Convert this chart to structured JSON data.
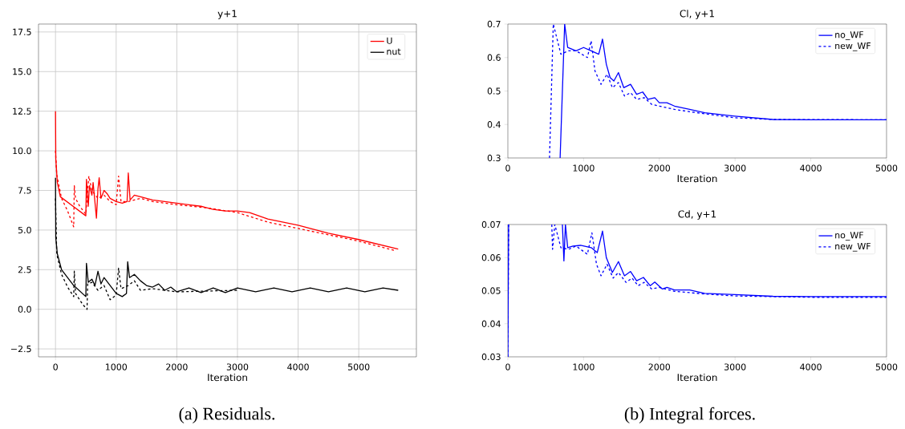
{
  "chart_data": [
    {
      "type": "line",
      "title": "y+1",
      "xlabel": "Iteration",
      "xlim": [
        -280,
        5950
      ],
      "ylim": [
        -3,
        18
      ],
      "xticks": [
        0,
        1000,
        2000,
        3000,
        4000,
        5000
      ],
      "yticks": [
        {
          "value": -2.5,
          "label": "−2.5"
        },
        {
          "value": 0,
          "label": "0.0"
        },
        {
          "value": 2.5,
          "label": "2.5"
        },
        {
          "value": 5,
          "label": "5.0"
        },
        {
          "value": 7.5,
          "label": "7.5"
        },
        {
          "value": 10,
          "label": "10.0"
        },
        {
          "value": 12.5,
          "label": "12.5"
        },
        {
          "value": 15,
          "label": "15.0"
        },
        {
          "value": 17.5,
          "label": "17.5"
        }
      ],
      "grid": true,
      "legend": "top right",
      "marker": "none",
      "annotations": [
        "(a) Residuals."
      ],
      "series": [
        {
          "name": "U",
          "color": "#ff0000",
          "line_style": "solid",
          "x": [
            0,
            5,
            30,
            80,
            500,
            510,
            540,
            560,
            600,
            620,
            675,
            700,
            720,
            750,
            800,
            850,
            900,
            1000,
            1100,
            1180,
            1200,
            1230,
            1300,
            1400,
            1600,
            1800,
            2000,
            2200,
            2400,
            2600,
            2800,
            3000,
            3200,
            3500,
            4000,
            4500,
            5000,
            5650
          ],
          "values": [
            12.5,
            9.5,
            8.0,
            7.1,
            5.9,
            8.2,
            6.5,
            7.8,
            7.2,
            8.0,
            5.75,
            7.6,
            8.3,
            7.0,
            7.5,
            7.3,
            7.0,
            6.8,
            6.7,
            6.8,
            8.6,
            6.9,
            7.2,
            7.1,
            6.9,
            6.8,
            6.7,
            6.6,
            6.5,
            6.3,
            6.2,
            6.2,
            6.1,
            5.7,
            5.3,
            4.8,
            4.4,
            3.8
          ]
        },
        {
          "color": "#ff0000",
          "line_style": "dashed",
          "x": [
            0,
            20,
            100,
            200,
            300,
            310,
            330,
            400,
            500,
            550,
            600,
            700,
            800,
            900,
            1000,
            1040,
            1080,
            1200,
            1400,
            1600,
            2000,
            2500,
            3000,
            3500,
            4000,
            4500,
            5000,
            5600
          ],
          "values": [
            10,
            8.5,
            7.0,
            6.2,
            5.2,
            7.8,
            7.0,
            6.5,
            6.0,
            8.4,
            7.5,
            7.0,
            7.2,
            6.8,
            6.6,
            8.4,
            6.8,
            6.8,
            7.0,
            6.8,
            6.6,
            6.4,
            6.1,
            5.5,
            5.1,
            4.7,
            4.3,
            3.7
          ]
        },
        {
          "name": "nut",
          "color": "#000000",
          "line_style": "solid",
          "x": [
            0,
            5,
            30,
            100,
            300,
            500,
            510,
            540,
            600,
            650,
            700,
            750,
            800,
            900,
            1000,
            1100,
            1170,
            1190,
            1220,
            1300,
            1400,
            1500,
            1600,
            1700,
            1800,
            1900,
            2000,
            2200,
            2400,
            2600,
            2800,
            3000,
            3300,
            3600,
            3900,
            4200,
            4500,
            4800,
            5100,
            5400,
            5650
          ],
          "values": [
            8.3,
            4.5,
            3.5,
            2.5,
            1.5,
            0.8,
            2.9,
            1.7,
            1.9,
            1.5,
            2.4,
            1.6,
            2.0,
            1.5,
            1.0,
            0.8,
            1.0,
            3.0,
            2.0,
            2.2,
            1.8,
            1.5,
            1.4,
            1.6,
            1.2,
            1.4,
            1.1,
            1.35,
            1.05,
            1.35,
            1.05,
            1.35,
            1.1,
            1.35,
            1.1,
            1.35,
            1.1,
            1.35,
            1.1,
            1.35,
            1.2
          ]
        },
        {
          "color": "#000000",
          "line_style": "dashed",
          "x": [
            0,
            20,
            100,
            200,
            300,
            310,
            330,
            450,
            520,
            530,
            600,
            700,
            800,
            900,
            1000,
            1040,
            1080,
            1200,
            1300,
            1400,
            1600,
            2000,
            3000
          ],
          "values": [
            7,
            3.5,
            2.2,
            1.4,
            0.8,
            2.4,
            1.0,
            0.3,
            0.0,
            1.6,
            1.7,
            1.2,
            1.5,
            0.6,
            0.9,
            2.6,
            1.3,
            1.5,
            1.8,
            1.2,
            1.3,
            1.1,
            1.2
          ]
        }
      ]
    },
    {
      "type": "line",
      "title": "Cl, y+1",
      "xlabel": "Iteration",
      "xlim": [
        0,
        5000
      ],
      "ylim": [
        0.3,
        0.7
      ],
      "xticks": [
        0,
        1000,
        2000,
        3000,
        4000,
        5000
      ],
      "yticks": [
        0.3,
        0.4,
        0.5,
        0.6,
        0.7
      ],
      "legend": "top right",
      "marker": "none",
      "series": [
        {
          "name": "no_WF",
          "color": "#0000ff",
          "line_style": "solid",
          "x": [
            690,
            750,
            790,
            900,
            1000,
            1100,
            1200,
            1250,
            1300,
            1350,
            1400,
            1460,
            1530,
            1620,
            1700,
            1780,
            1850,
            1940,
            2000,
            2100,
            2200,
            2400,
            2600,
            3000,
            3500,
            4000,
            5000
          ],
          "values": [
            0.3,
            0.7,
            0.63,
            0.62,
            0.63,
            0.62,
            0.61,
            0.655,
            0.58,
            0.54,
            0.53,
            0.555,
            0.51,
            0.52,
            0.49,
            0.497,
            0.475,
            0.48,
            0.465,
            0.465,
            0.455,
            0.445,
            0.435,
            0.425,
            0.415,
            0.414,
            0.414
          ]
        },
        {
          "name": "new_WF",
          "color": "#0000ff",
          "line_style": "dashed",
          "x": [
            550,
            600,
            700,
            800,
            900,
            1050,
            1100,
            1150,
            1230,
            1310,
            1380,
            1460,
            1540,
            1620,
            1700,
            1800,
            1900,
            2000,
            2200,
            2500,
            3000,
            3500,
            5000
          ],
          "values": [
            0.3,
            0.7,
            0.61,
            0.62,
            0.62,
            0.6,
            0.65,
            0.56,
            0.52,
            0.55,
            0.51,
            0.525,
            0.485,
            0.495,
            0.475,
            0.48,
            0.46,
            0.455,
            0.445,
            0.435,
            0.42,
            0.415,
            0.414
          ]
        }
      ]
    },
    {
      "type": "line",
      "title": "Cd, y+1",
      "xlabel": "Iteration",
      "xlim": [
        0,
        5000
      ],
      "ylim": [
        0.03,
        0.07
      ],
      "xticks": [
        0,
        1000,
        2000,
        3000,
        4000,
        5000
      ],
      "yticks": [
        0.03,
        0.04,
        0.05,
        0.06,
        0.07
      ],
      "legend": "top right",
      "marker": "none",
      "annotations": [
        "(b) Integral forces."
      ],
      "series": [
        {
          "name": "no_WF",
          "color": "#0000ff",
          "line_style": "solid",
          "x": [
            0,
            10,
            300,
            720,
            740,
            760,
            790,
            860,
            960,
            1100,
            1180,
            1250,
            1300,
            1380,
            1460,
            1540,
            1620,
            1700,
            1790,
            1880,
            1940,
            2040,
            2100,
            2200,
            2400,
            2600,
            3000,
            3500,
            4000,
            5000
          ],
          "values": [
            0.03,
            0.07,
            null,
            0.07,
            0.059,
            0.07,
            0.063,
            0.0635,
            0.0637,
            0.063,
            0.0615,
            0.068,
            0.06,
            0.0555,
            0.0588,
            0.0545,
            0.0558,
            0.053,
            0.054,
            0.0515,
            0.0526,
            0.0505,
            0.051,
            0.0502,
            0.0502,
            0.0492,
            0.0488,
            0.0483,
            0.0482,
            0.0482
          ]
        },
        {
          "name": "new_WF",
          "color": "#0000ff",
          "line_style": "dashed",
          "x": [
            0,
            10,
            300,
            580,
            590,
            620,
            700,
            800,
            900,
            1050,
            1110,
            1170,
            1230,
            1310,
            1390,
            1460,
            1560,
            1640,
            1720,
            1800,
            1900,
            2000,
            2200,
            2600,
            3000,
            4000,
            5000
          ],
          "values": [
            0.03,
            0.07,
            null,
            0.07,
            0.0625,
            0.07,
            0.063,
            0.0625,
            0.0635,
            0.061,
            0.0675,
            0.058,
            0.0545,
            0.058,
            0.0538,
            0.0555,
            0.0525,
            0.0538,
            0.0515,
            0.0525,
            0.0505,
            0.051,
            0.0498,
            0.049,
            0.0484,
            0.048,
            0.048
          ]
        }
      ]
    }
  ]
}
